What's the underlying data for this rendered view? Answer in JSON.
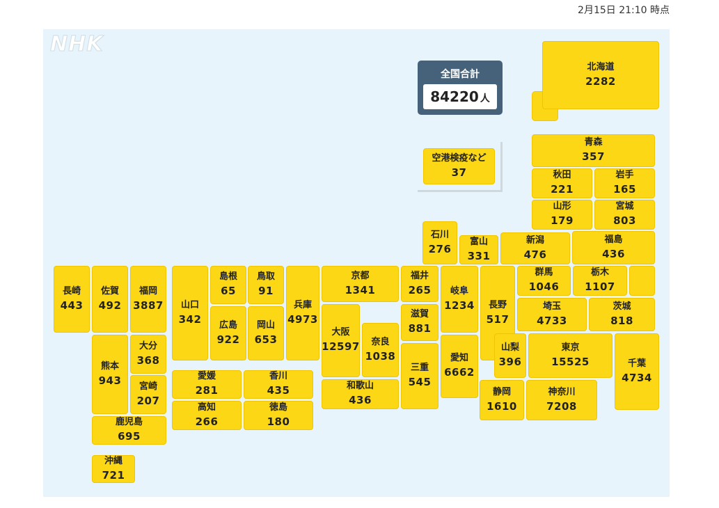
{
  "timestamp": "2月15日 21:10 時点",
  "logo": "NHK",
  "total": {
    "label": "全国合計",
    "count": "84220",
    "unit": "人"
  },
  "airport": {
    "name": "空港検疫など",
    "count": "37"
  },
  "prefectures": {
    "hokkaido": {
      "name": "北海道",
      "count": "2282"
    },
    "aomori": {
      "name": "青森",
      "count": "357"
    },
    "akita": {
      "name": "秋田",
      "count": "221"
    },
    "iwate": {
      "name": "岩手",
      "count": "165"
    },
    "yamagata": {
      "name": "山形",
      "count": "179"
    },
    "miyagi": {
      "name": "宮城",
      "count": "803"
    },
    "ishikawa": {
      "name": "石川",
      "count": "276"
    },
    "toyama": {
      "name": "富山",
      "count": "331"
    },
    "niigata": {
      "name": "新潟",
      "count": "476"
    },
    "fukushima": {
      "name": "福島",
      "count": "436"
    },
    "nagasaki": {
      "name": "長崎",
      "count": "443"
    },
    "saga": {
      "name": "佐賀",
      "count": "492"
    },
    "fukuoka": {
      "name": "福岡",
      "count": "3887"
    },
    "yamaguchi": {
      "name": "山口",
      "count": "342"
    },
    "shimane": {
      "name": "島根",
      "count": "65"
    },
    "tottori": {
      "name": "鳥取",
      "count": "91"
    },
    "hiroshima": {
      "name": "広島",
      "count": "922"
    },
    "okayama": {
      "name": "岡山",
      "count": "653"
    },
    "hyogo": {
      "name": "兵庫",
      "count": "4973"
    },
    "kyoto": {
      "name": "京都",
      "count": "1341"
    },
    "fukui": {
      "name": "福井",
      "count": "265"
    },
    "gifu": {
      "name": "岐阜",
      "count": "1234"
    },
    "nagano": {
      "name": "長野",
      "count": "517"
    },
    "gunma": {
      "name": "群馬",
      "count": "1046"
    },
    "tochigi": {
      "name": "栃木",
      "count": "1107"
    },
    "saitama": {
      "name": "埼玉",
      "count": "4733"
    },
    "ibaraki": {
      "name": "茨城",
      "count": "818"
    },
    "shiga": {
      "name": "滋賀",
      "count": "881"
    },
    "osaka": {
      "name": "大阪",
      "count": "12597"
    },
    "nara": {
      "name": "奈良",
      "count": "1038"
    },
    "mie": {
      "name": "三重",
      "count": "545"
    },
    "aichi": {
      "name": "愛知",
      "count": "6662"
    },
    "yamanashi": {
      "name": "山梨",
      "count": "396"
    },
    "tokyo": {
      "name": "東京",
      "count": "15525"
    },
    "chiba": {
      "name": "千葉",
      "count": "4734"
    },
    "kumamoto": {
      "name": "熊本",
      "count": "943"
    },
    "oita": {
      "name": "大分",
      "count": "368"
    },
    "miyazaki": {
      "name": "宮崎",
      "count": "207"
    },
    "ehime": {
      "name": "愛媛",
      "count": "281"
    },
    "kagawa": {
      "name": "香川",
      "count": "435"
    },
    "kochi": {
      "name": "高知",
      "count": "266"
    },
    "tokushima": {
      "name": "徳島",
      "count": "180"
    },
    "wakayama": {
      "name": "和歌山",
      "count": "436"
    },
    "shizuoka": {
      "name": "静岡",
      "count": "1610"
    },
    "kanagawa": {
      "name": "神奈川",
      "count": "7208"
    },
    "kagoshima": {
      "name": "鹿児島",
      "count": "695"
    },
    "okinawa": {
      "name": "沖縄",
      "count": "721"
    }
  },
  "colors": {
    "tile": "#fcd716",
    "sea": "#e8f4fb",
    "total_box": "#45627a"
  }
}
